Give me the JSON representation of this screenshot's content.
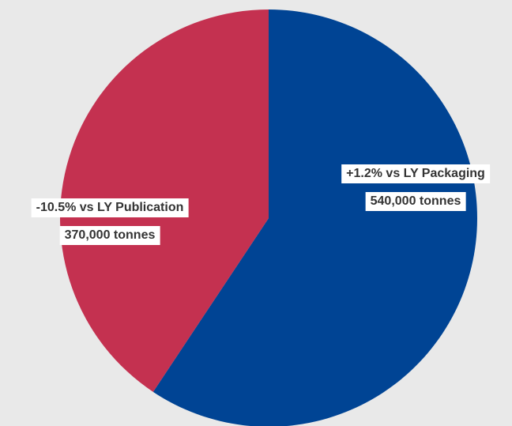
{
  "chart_data": {
    "type": "pie",
    "title": "",
    "slices": [
      {
        "label": "Packaging",
        "value": 540000,
        "unit_text": "540,000 tonnes",
        "change_text": "+1.2% vs LY Packaging",
        "color": "#004494"
      },
      {
        "label": "Publication",
        "value": 370000,
        "unit_text": "370,000 tonnes",
        "change_text": "-10.5% vs LY Publication",
        "color": "#c43150"
      }
    ],
    "start_angle": "12 o'clock",
    "direction": "clockwise",
    "legend": "none"
  }
}
